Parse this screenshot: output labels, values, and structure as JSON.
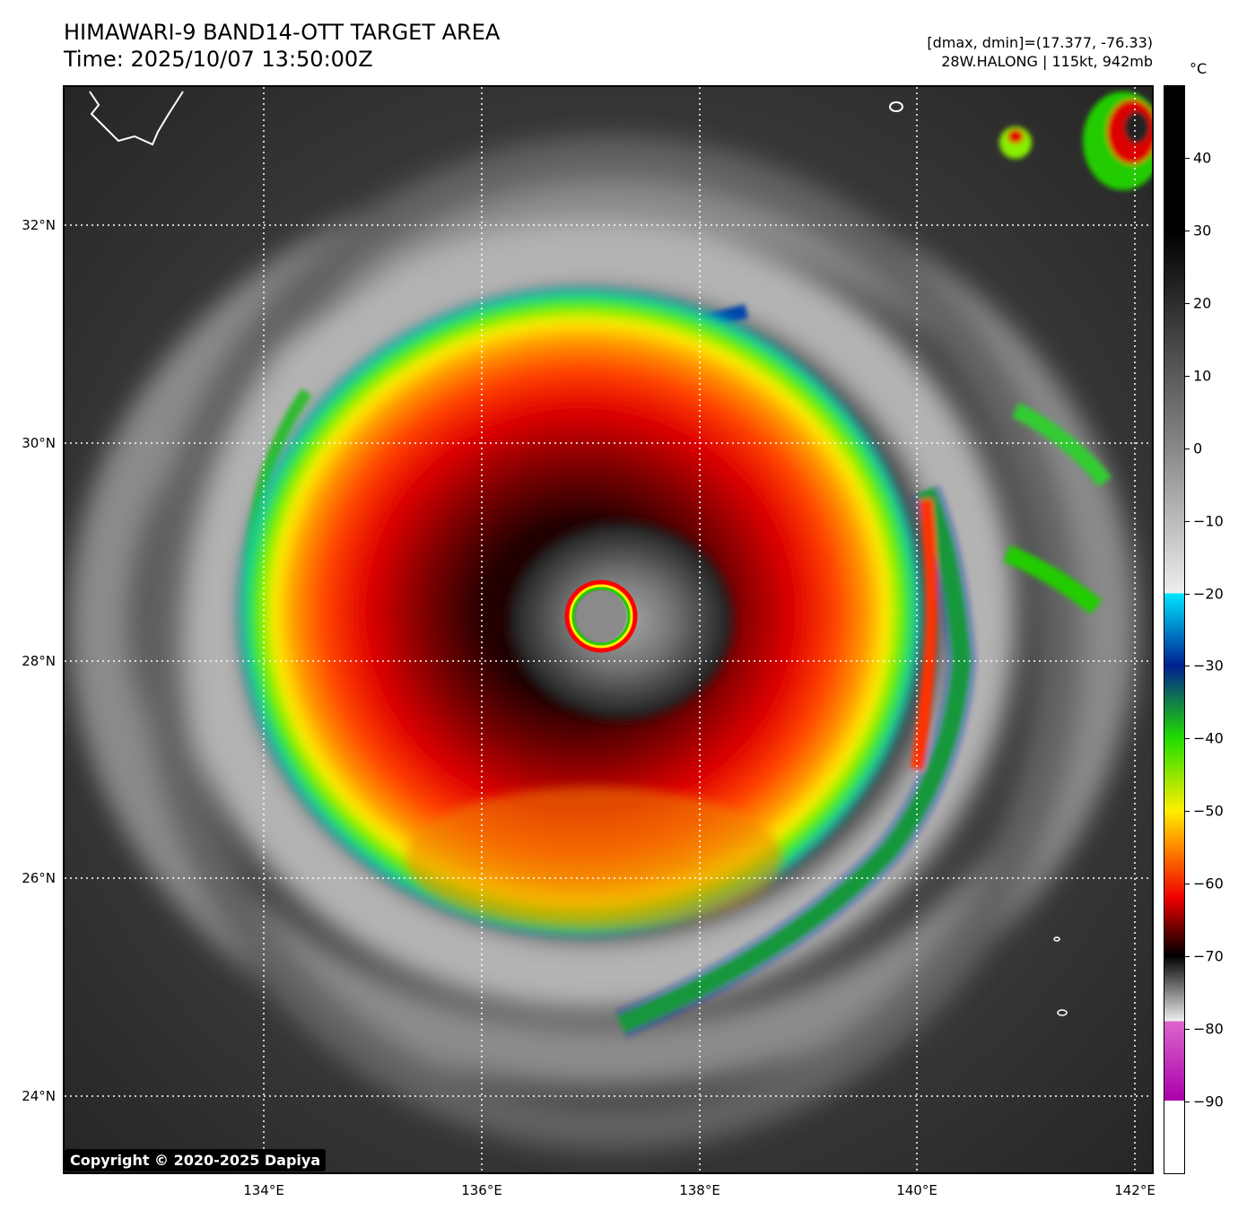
{
  "header": {
    "title_line1": "HIMAWARI-9 BAND14-OTT TARGET AREA",
    "title_line2": "Time: 2025/10/07 13:50:00Z",
    "info_line1": "[dmax, dmin]=(17.377, -76.33)",
    "info_line2": "28W.HALONG | 115kt, 942mb"
  },
  "map": {
    "lat_labels": [
      "32°N",
      "30°N",
      "28°N",
      "26°N",
      "24°N"
    ],
    "lon_labels": [
      "134°E",
      "136°E",
      "138°E",
      "140°E",
      "142°E"
    ],
    "gridlines": "dotted white",
    "copyright": "Copyright © 2020-2025 Dapiya"
  },
  "colorbar": {
    "unit": "°C",
    "ticks": [
      "40",
      "30",
      "20",
      "10",
      "0",
      "−10",
      "−20",
      "−30",
      "−40",
      "−50",
      "−60",
      "−70",
      "−80",
      "−90"
    ],
    "range": [
      -100,
      50
    ],
    "colors": {
      "warm": "#000000",
      "neutral": "#888888",
      "cold_gray": "#eeeeee",
      "cyan": "#00e5ff",
      "blue": "#002090",
      "green": "#22dd00",
      "yellow": "#ffee00",
      "orange": "#ff8800",
      "red": "#ee0000",
      "dark_red": "#550000",
      "magenta": "#aa00aa",
      "white": "#ffffff"
    }
  },
  "storm": {
    "name": "28W.HALONG",
    "intensity_kt": 115,
    "pressure_mb": 942,
    "center_lat": 28.45,
    "center_lon": 136.95
  }
}
